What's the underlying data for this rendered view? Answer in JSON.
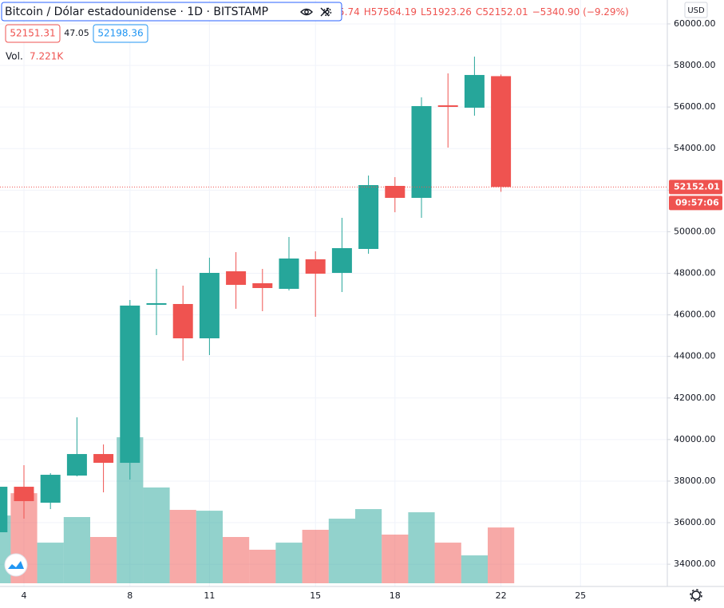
{
  "chart_data": {
    "type": "candlestick",
    "title": "Bitcoin / Dólar estadounidense · 1D · BITSTAMP",
    "ohlc_readout": [
      "5.74",
      "H57564.19",
      "L51923.26",
      "C52152.01",
      "−5340.90 (−9.29%)"
    ],
    "bid": "52151.31",
    "spread": "47.05",
    "ask": "52198.36",
    "volume_title": "Vol.",
    "volume_label": "7.221K",
    "currency": "USD",
    "last_price_label": "52152.01",
    "countdown": "09:57:06",
    "up_color": "#26a69a",
    "down_color": "#ef5350",
    "grid": true,
    "categories": [
      null,
      "4",
      null,
      null,
      null,
      "8",
      null,
      null,
      "11",
      null,
      null,
      null,
      "15",
      null,
      null,
      "18",
      null,
      null,
      null,
      "22",
      null,
      null,
      "25",
      null,
      null,
      null
    ],
    "open": [
      35539,
      37728,
      36960,
      38266,
      39302,
      38880,
      46483,
      46522,
      44870,
      48096,
      47520,
      47251,
      48672,
      48019,
      49171,
      52205,
      51629,
      56083,
      55968,
      57485.74,
      null,
      null,
      null,
      null,
      null,
      null
    ],
    "high": [
      38000,
      38765,
      38381,
      41069,
      39763,
      46714,
      48211,
      47405,
      48749,
      49018,
      48211,
      49747,
      49056,
      50669,
      52704,
      52627,
      56467,
      57619,
      58426,
      57564.19,
      null,
      null,
      null,
      null,
      null,
      null
    ],
    "low": [
      35300,
      36192,
      36653,
      38227,
      37459,
      38074,
      45024,
      43795,
      44064,
      46291,
      46176,
      47174,
      45907,
      47098,
      48941,
      50938,
      50669,
      54048,
      55584,
      51923.26,
      null,
      null,
      null,
      null,
      null,
      null
    ],
    "close": [
      37728,
      37037,
      38304,
      39302,
      38880,
      46445,
      46560,
      44870,
      48019,
      47443,
      47290,
      48710,
      47981,
      49210,
      52243,
      51629,
      56045,
      56006,
      57542,
      52152.01,
      null,
      null,
      null,
      null,
      null,
      null
    ],
    "volume": [
      8770,
      11660,
      5260,
      8570,
      5990,
      18900,
      12400,
      9500,
      9390,
      5990,
      4340,
      5260,
      6920,
      8360,
      9600,
      6300,
      9190,
      5260,
      3610,
      7221,
      null,
      null,
      null,
      null,
      null,
      null
    ],
    "ylim": [
      32930,
      61150
    ],
    "yticks": [
      {
        "value": 34000,
        "label": "34000.00"
      },
      {
        "value": 36000,
        "label": "36000.00"
      },
      {
        "value": 38000,
        "label": "38000.00"
      },
      {
        "value": 40000,
        "label": "40000.00"
      },
      {
        "value": 42000,
        "label": "42000.00"
      },
      {
        "value": 44000,
        "label": "44000.00"
      },
      {
        "value": 46000,
        "label": "46000.00"
      },
      {
        "value": 48000,
        "label": "48000.00"
      },
      {
        "value": 50000,
        "label": "50000.00"
      },
      {
        "value": 52000,
        "label": "52000.00"
      },
      {
        "value": 54000,
        "label": "54000.00"
      },
      {
        "value": 56000,
        "label": "56000.00"
      },
      {
        "value": 58000,
        "label": "58000.00"
      },
      {
        "value": 60000,
        "label": "60000.00"
      }
    ]
  }
}
